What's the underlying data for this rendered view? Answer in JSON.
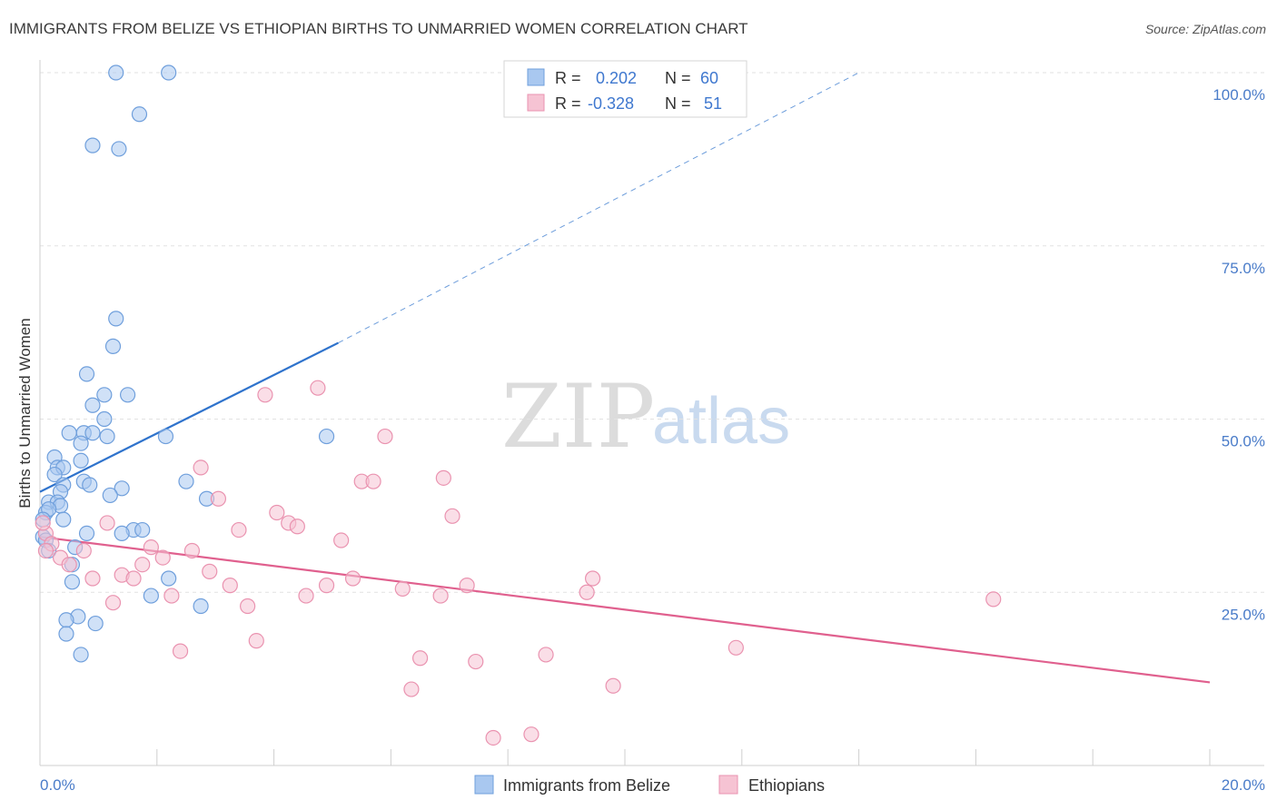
{
  "title": "IMMIGRANTS FROM BELIZE VS ETHIOPIAN BIRTHS TO UNMARRIED WOMEN CORRELATION CHART",
  "source": "Source: ZipAtlas.com",
  "watermark": {
    "part1": "ZIP",
    "part2": "atlas"
  },
  "legend_top": [
    {
      "r_label": "R =",
      "r_value": "0.202",
      "n_label": "N =",
      "n_value": "60"
    },
    {
      "r_label": "R =",
      "r_value": "-0.328",
      "n_label": "N =",
      "n_value": "51"
    }
  ],
  "chart_data": {
    "type": "scatter",
    "xlabel": "",
    "ylabel": "Births to Unmarried Women",
    "xlim": [
      0,
      20
    ],
    "ylim": [
      0,
      100
    ],
    "x_ticks": [
      "0.0%",
      "20.0%"
    ],
    "y_ticks": [
      {
        "value": 25,
        "label": "25.0%"
      },
      {
        "value": 50,
        "label": "50.0%"
      },
      {
        "value": 75,
        "label": "75.0%"
      },
      {
        "value": 100,
        "label": "100.0%"
      }
    ],
    "grid": true,
    "legend_position": "bottom",
    "series": [
      {
        "name": "Immigrants from Belize",
        "color": "#a9c8f0",
        "edge": "#6f9fdc",
        "line_color": "#2f73cc",
        "trend": {
          "x0": 0.0,
          "y0": 39.5,
          "x1": 5.1,
          "y1": 61.0,
          "dash_x1": 14.0,
          "dash_y1": 100.0
        },
        "points": [
          [
            1.3,
            100
          ],
          [
            2.2,
            100
          ],
          [
            1.7,
            94
          ],
          [
            0.9,
            89.5
          ],
          [
            1.35,
            89
          ],
          [
            1.3,
            64.5
          ],
          [
            1.25,
            60.5
          ],
          [
            0.8,
            56.5
          ],
          [
            1.5,
            53.5
          ],
          [
            1.1,
            53.5
          ],
          [
            0.9,
            52
          ],
          [
            1.1,
            50
          ],
          [
            0.5,
            48
          ],
          [
            0.75,
            48
          ],
          [
            0.9,
            48
          ],
          [
            1.15,
            47.5
          ],
          [
            0.7,
            46.5
          ],
          [
            2.15,
            47.5
          ],
          [
            4.9,
            47.5
          ],
          [
            0.25,
            44.5
          ],
          [
            0.3,
            43
          ],
          [
            0.4,
            43
          ],
          [
            0.7,
            44
          ],
          [
            0.25,
            42
          ],
          [
            0.4,
            40.5
          ],
          [
            0.75,
            41
          ],
          [
            0.85,
            40.5
          ],
          [
            1.4,
            40
          ],
          [
            2.5,
            41
          ],
          [
            0.35,
            39.5
          ],
          [
            1.2,
            39
          ],
          [
            2.85,
            38.5
          ],
          [
            0.15,
            38
          ],
          [
            0.3,
            38
          ],
          [
            0.35,
            37.5
          ],
          [
            0.1,
            36.5
          ],
          [
            0.15,
            37
          ],
          [
            0.05,
            35.5
          ],
          [
            0.4,
            35.5
          ],
          [
            1.6,
            34
          ],
          [
            1.75,
            34
          ],
          [
            0.8,
            33.5
          ],
          [
            1.4,
            33.5
          ],
          [
            0.05,
            33
          ],
          [
            0.1,
            32.5
          ],
          [
            0.6,
            31.5
          ],
          [
            0.15,
            31
          ],
          [
            0.55,
            29
          ],
          [
            2.2,
            27
          ],
          [
            0.55,
            26.5
          ],
          [
            1.9,
            24.5
          ],
          [
            2.75,
            23
          ],
          [
            0.65,
            21.5
          ],
          [
            0.45,
            21
          ],
          [
            0.95,
            20.5
          ],
          [
            0.45,
            19
          ],
          [
            0.7,
            16
          ]
        ]
      },
      {
        "name": "Ethiopians",
        "color": "#f6c3d3",
        "edge": "#ea93b0",
        "line_color": "#e0608e",
        "trend": {
          "x0": 0.0,
          "y0": 33.0,
          "x1": 20.0,
          "y1": 12.0
        },
        "points": [
          [
            0.1,
            33.5
          ],
          [
            0.05,
            35
          ],
          [
            0.2,
            32
          ],
          [
            0.1,
            31
          ],
          [
            0.35,
            30
          ],
          [
            0.5,
            29
          ],
          [
            0.75,
            31
          ],
          [
            0.9,
            27
          ],
          [
            1.15,
            35
          ],
          [
            1.25,
            23.5
          ],
          [
            1.4,
            27.5
          ],
          [
            1.6,
            27
          ],
          [
            1.75,
            29
          ],
          [
            1.9,
            31.5
          ],
          [
            2.1,
            30
          ],
          [
            2.25,
            24.5
          ],
          [
            2.4,
            16.5
          ],
          [
            2.6,
            31
          ],
          [
            2.75,
            43
          ],
          [
            2.9,
            28
          ],
          [
            3.05,
            38.5
          ],
          [
            3.25,
            26
          ],
          [
            3.4,
            34
          ],
          [
            3.55,
            23
          ],
          [
            3.7,
            18
          ],
          [
            3.85,
            53.5
          ],
          [
            4.05,
            36.5
          ],
          [
            4.25,
            35
          ],
          [
            4.4,
            34.5
          ],
          [
            4.55,
            24.5
          ],
          [
            4.75,
            54.5
          ],
          [
            4.9,
            26
          ],
          [
            5.15,
            32.5
          ],
          [
            5.35,
            27
          ],
          [
            5.5,
            41
          ],
          [
            5.7,
            41
          ],
          [
            5.9,
            47.5
          ],
          [
            6.2,
            25.5
          ],
          [
            6.35,
            11
          ],
          [
            6.5,
            15.5
          ],
          [
            6.85,
            24.5
          ],
          [
            6.9,
            41.5
          ],
          [
            7.05,
            36
          ],
          [
            7.3,
            26
          ],
          [
            7.45,
            15
          ],
          [
            7.75,
            4
          ],
          [
            8.4,
            4.5
          ],
          [
            8.65,
            16
          ],
          [
            9.35,
            25
          ],
          [
            9.45,
            27
          ],
          [
            9.8,
            11.5
          ],
          [
            11.9,
            17
          ],
          [
            16.3,
            24
          ]
        ]
      }
    ]
  }
}
